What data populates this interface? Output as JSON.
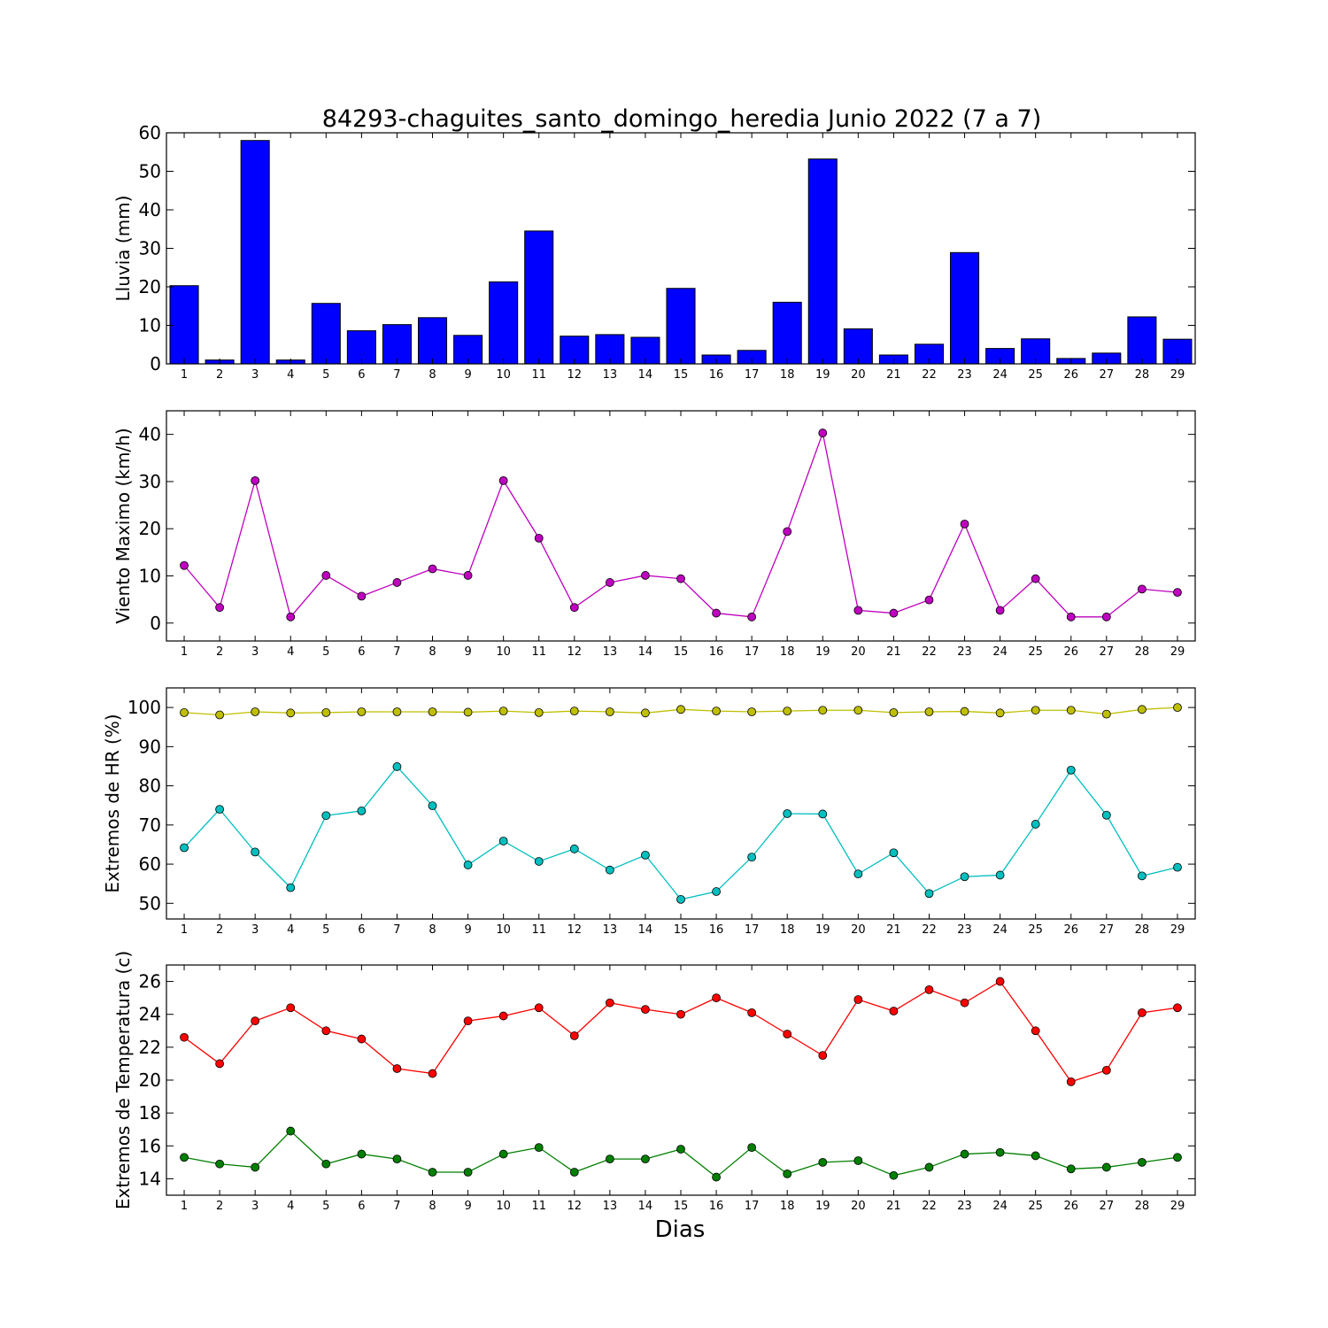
{
  "figure": {
    "title": "84293-chaguites_santo_domingo_heredia Junio 2022  (7 a 7)",
    "xlabel": "Dias"
  },
  "chart_data": [
    {
      "type": "bar",
      "ylabel": "Lluvia (mm)",
      "categories": [
        1,
        2,
        3,
        4,
        5,
        6,
        7,
        8,
        9,
        10,
        11,
        12,
        13,
        14,
        15,
        16,
        17,
        18,
        19,
        20,
        21,
        22,
        23,
        24,
        25,
        26,
        27,
        28,
        29
      ],
      "ylim": [
        0,
        60
      ],
      "yticks": [
        0,
        10,
        20,
        30,
        40,
        50,
        60
      ],
      "series": [
        {
          "color": "#0000ff",
          "values": [
            20.3,
            1.0,
            58.0,
            1.0,
            15.7,
            8.6,
            10.2,
            12.0,
            7.4,
            21.3,
            34.5,
            7.2,
            7.6,
            6.9,
            19.6,
            2.3,
            3.5,
            16.0,
            53.2,
            9.1,
            2.3,
            5.1,
            28.9,
            4.0,
            6.5,
            1.4,
            2.8,
            12.2,
            6.4
          ]
        }
      ]
    },
    {
      "type": "line",
      "ylabel": "Viento Maximo (km/h)",
      "categories": [
        1,
        2,
        3,
        4,
        5,
        6,
        7,
        8,
        9,
        10,
        11,
        12,
        13,
        14,
        15,
        16,
        17,
        18,
        19,
        20,
        21,
        22,
        23,
        24,
        25,
        26,
        27,
        28,
        29
      ],
      "ylim": [
        -3.8,
        45
      ],
      "yticks": [
        0,
        10,
        20,
        30,
        40
      ],
      "series": [
        {
          "color": "#bf00bf",
          "values": [
            12.2,
            3.3,
            30.2,
            1.3,
            10.1,
            5.7,
            8.6,
            11.5,
            10.1,
            30.2,
            18.0,
            3.3,
            8.6,
            10.1,
            9.4,
            2.1,
            1.3,
            19.4,
            40.3,
            2.7,
            2.1,
            4.9,
            21.0,
            2.7,
            9.4,
            1.3,
            1.3,
            7.2,
            6.5
          ]
        }
      ]
    },
    {
      "type": "line",
      "ylabel": "Extremos de HR (%)",
      "categories": [
        1,
        2,
        3,
        4,
        5,
        6,
        7,
        8,
        9,
        10,
        11,
        12,
        13,
        14,
        15,
        16,
        17,
        18,
        19,
        20,
        21,
        22,
        23,
        24,
        25,
        26,
        27,
        28,
        29
      ],
      "ylim": [
        46,
        105
      ],
      "yticks": [
        50,
        60,
        70,
        80,
        90,
        100
      ],
      "series": [
        {
          "color": "#bfbf00",
          "values": [
            98.7,
            98.1,
            98.9,
            98.6,
            98.7,
            98.9,
            98.9,
            98.9,
            98.8,
            99.1,
            98.7,
            99.1,
            98.9,
            98.6,
            99.5,
            99.1,
            98.9,
            99.1,
            99.3,
            99.3,
            98.7,
            98.9,
            99.0,
            98.6,
            99.3,
            99.3,
            98.3,
            99.5,
            100.0
          ]
        },
        {
          "color": "#00bfbf",
          "values": [
            64.2,
            74.0,
            63.1,
            54.0,
            72.4,
            73.6,
            84.9,
            74.9,
            59.8,
            65.9,
            60.7,
            63.9,
            58.5,
            62.3,
            51.0,
            53.0,
            61.8,
            72.9,
            72.8,
            57.5,
            62.9,
            52.5,
            56.8,
            57.2,
            70.2,
            84.0,
            72.5,
            57.0,
            59.2
          ]
        }
      ]
    },
    {
      "type": "line",
      "ylabel": "Extremos de Temperatura (c)",
      "categories": [
        1,
        2,
        3,
        4,
        5,
        6,
        7,
        8,
        9,
        10,
        11,
        12,
        13,
        14,
        15,
        16,
        17,
        18,
        19,
        20,
        21,
        22,
        23,
        24,
        25,
        26,
        27,
        28,
        29
      ],
      "ylim": [
        13.0,
        27.0
      ],
      "yticks": [
        14,
        16,
        18,
        20,
        22,
        24,
        26
      ],
      "series": [
        {
          "color": "#ff0000",
          "values": [
            22.6,
            21.0,
            23.6,
            24.4,
            23.0,
            22.5,
            20.7,
            20.4,
            23.6,
            23.9,
            24.4,
            22.7,
            24.7,
            24.3,
            24.0,
            25.0,
            24.1,
            22.8,
            21.5,
            24.9,
            24.2,
            25.5,
            24.7,
            26.0,
            23.0,
            19.9,
            20.6,
            24.1,
            24.4
          ]
        },
        {
          "color": "#007f00",
          "values": [
            15.3,
            14.9,
            14.7,
            16.9,
            14.9,
            15.5,
            15.2,
            14.4,
            14.4,
            15.5,
            15.9,
            14.4,
            15.2,
            15.2,
            15.8,
            14.1,
            15.9,
            14.3,
            15.0,
            15.1,
            14.2,
            14.7,
            15.5,
            15.6,
            15.4,
            14.6,
            14.7,
            15.0,
            15.3
          ]
        }
      ]
    }
  ]
}
